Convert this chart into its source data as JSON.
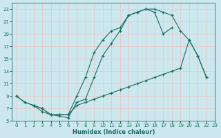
{
  "xlabel": "Humidex (Indice chaleur)",
  "ylabel": "",
  "bg_color": "#cce8ee",
  "grid_color": "#e8c8c8",
  "line_color": "#1a6b60",
  "xlim": [
    -0.5,
    23
  ],
  "ylim": [
    5,
    24
  ],
  "xticks": [
    0,
    1,
    2,
    3,
    4,
    5,
    6,
    7,
    8,
    9,
    10,
    11,
    12,
    13,
    14,
    15,
    16,
    17,
    18,
    19,
    20,
    21,
    22,
    23
  ],
  "yticks": [
    5,
    7,
    9,
    11,
    13,
    15,
    17,
    19,
    21,
    23
  ],
  "line1_x": [
    0,
    1,
    2,
    3,
    4,
    5,
    6,
    7,
    8,
    9,
    10,
    11,
    12,
    13,
    14,
    15,
    16,
    17,
    18
  ],
  "line1_y": [
    9,
    8,
    7.5,
    7,
    6,
    6,
    6,
    9,
    12,
    16,
    18,
    19.5,
    20,
    22,
    22.5,
    23,
    22.5,
    19,
    20
  ],
  "line2_x": [
    0,
    1,
    2,
    3,
    4,
    5,
    6,
    7,
    8,
    9,
    10,
    11,
    12,
    13,
    14,
    15,
    16,
    17,
    18,
    19,
    20,
    21,
    22
  ],
  "line2_y": [
    9,
    8,
    7.5,
    7,
    6,
    6,
    6,
    7.5,
    8,
    8.5,
    9,
    9.5,
    10,
    10.5,
    11,
    11.5,
    12,
    12.5,
    13,
    13.5,
    18,
    15.5,
    12
  ],
  "line3_x": [
    2,
    3,
    4,
    5,
    6,
    7,
    8,
    9,
    10,
    11,
    12,
    13,
    14,
    15,
    16,
    17,
    18,
    19,
    20,
    21,
    22
  ],
  "line3_y": [
    7.5,
    6.5,
    6,
    5.8,
    5.5,
    8,
    8.5,
    12,
    15.5,
    17.5,
    19.5,
    22,
    22.5,
    23,
    23,
    22.5,
    22,
    19.5,
    18,
    15.5,
    12
  ]
}
